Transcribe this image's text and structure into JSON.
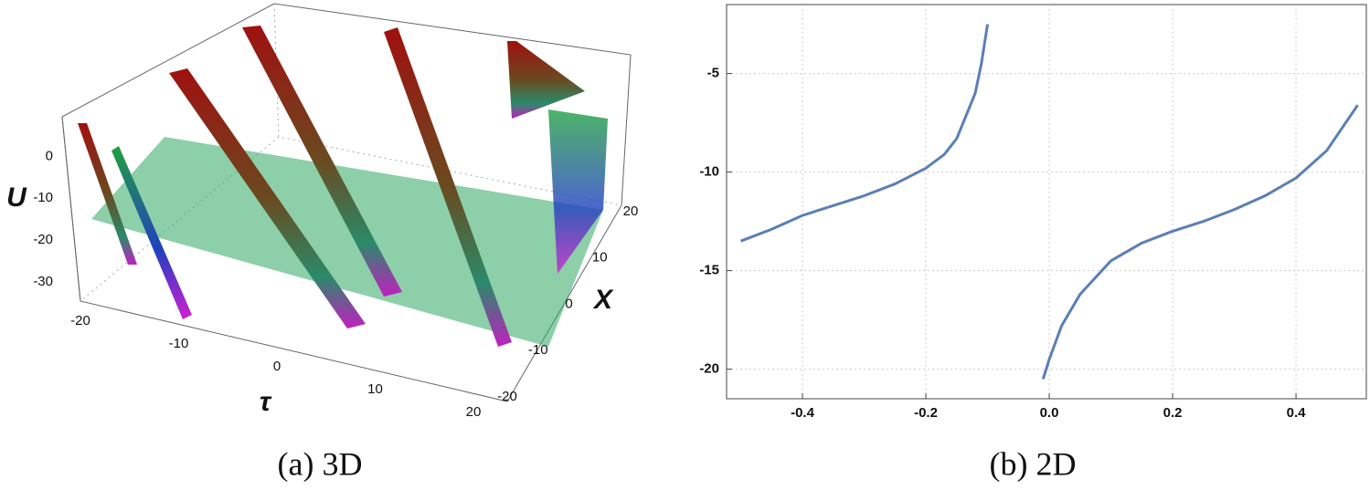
{
  "chart_data": [
    {
      "type": "surface3d",
      "caption": "(a) 3D",
      "x_label": "τ",
      "y_label": "X",
      "z_label": "U",
      "xlim": [
        -20,
        20
      ],
      "xticks": [
        -20,
        -10,
        0,
        10,
        20
      ],
      "ylim": [
        -20,
        20
      ],
      "yticks": [
        -20,
        -10,
        0,
        10,
        20
      ],
      "zlim": [
        -33.5,
        9
      ],
      "zticks": [
        -30,
        -20,
        -10,
        0
      ]
    },
    {
      "type": "line",
      "caption": "(b) 2D",
      "x": [
        -0.5,
        -0.45,
        -0.4,
        -0.35,
        -0.3,
        -0.25,
        -0.2,
        -0.17,
        -0.15,
        -0.12,
        -0.11,
        -0.1,
        -0.05,
        -0.01,
        0.0,
        0.02,
        0.05,
        0.1,
        0.15,
        0.2,
        0.25,
        0.3,
        0.35,
        0.4,
        0.45,
        0.5
      ],
      "series": [
        {
          "color": "#5b7fb5",
          "values": [
            -13.5,
            -12.9,
            -12.2,
            -11.7,
            -11.2,
            -10.6,
            -9.8,
            -9.1,
            -8.3,
            -6.0,
            -4.5,
            -2.5,
            null,
            -20.5,
            -19.5,
            -17.8,
            -16.2,
            -14.5,
            -13.6,
            -13.0,
            -12.5,
            -11.9,
            -11.2,
            -10.3,
            -8.9,
            -6.6
          ]
        }
      ],
      "xlim": [
        -0.523,
        0.514
      ],
      "xticks": [
        -0.4,
        -0.2,
        {
          "value": 0,
          "label": "0.0"
        },
        0.2,
        0.4
      ],
      "ylim": [
        -21.5,
        -1.5
      ],
      "yticks": [
        -20,
        -15,
        -10,
        -5
      ],
      "grid": true
    }
  ]
}
